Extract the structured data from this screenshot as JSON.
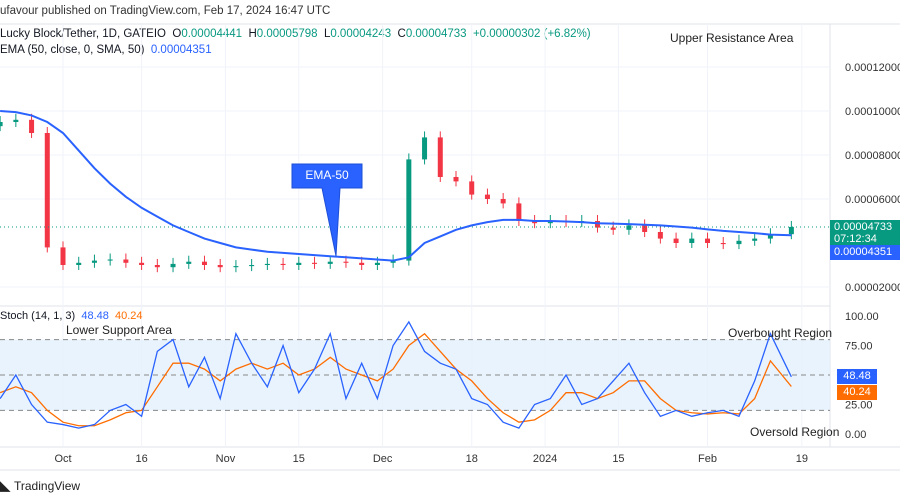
{
  "header": {
    "published": "ufavour published on TradingView.com, Feb 17, 2024 16:47 UTC",
    "symbol": "Lucky Block/Tether, 1D, GATEIO",
    "o_label": "O",
    "o": "0.00004441",
    "h_label": "H",
    "h": "0.00005798",
    "l_label": "L",
    "l": "0.00004243",
    "c_label": "C",
    "c": "0.00004733",
    "change": "+0.00000302 (+6.82%)",
    "ema_label": "EMA (50, close, 0, SMA, 50)",
    "ema_value": "0.00004351"
  },
  "annotations": {
    "upper": "Upper Resistance Area",
    "ema_callout": "EMA-50",
    "lower": "Lower Support Area",
    "overbought": "Overbought Region",
    "oversold": "Oversold Region"
  },
  "price_axis": {
    "ticks": [
      "0.00012000",
      "0.00010000",
      "0.00008000",
      "0.00006000",
      "0.00002000"
    ],
    "last_price": "0.00004733",
    "countdown": "07:12:34",
    "ema_price": "0.00004351"
  },
  "stoch": {
    "label": "Stoch (14, 1, 3)",
    "k_value": "48.48",
    "d_value": "40.24",
    "ticks": [
      "100.00",
      "75.00",
      "25.00",
      "0.00"
    ]
  },
  "time_axis": [
    "Oct",
    "16",
    "Nov",
    "15",
    "Dec",
    "18",
    "2024",
    "15",
    "Feb",
    "19"
  ],
  "footer": {
    "brand": "TradingView"
  },
  "colors": {
    "up": "#089981",
    "down": "#f23645",
    "ema": "#2962ff",
    "k": "#2962ff",
    "d": "#ff6d00",
    "band": "#e3f0fd"
  },
  "chart_data": {
    "type": "candlestick",
    "dates": [
      "2023-09-19",
      "2023-09-22",
      "2023-09-25",
      "2023-09-28",
      "2023-10-01",
      "2023-10-04",
      "2023-10-07",
      "2023-10-10",
      "2023-10-13",
      "2023-10-16",
      "2023-10-19",
      "2023-10-22",
      "2023-10-25",
      "2023-10-28",
      "2023-10-31",
      "2023-11-03",
      "2023-11-06",
      "2023-11-09",
      "2023-11-12",
      "2023-11-15",
      "2023-11-18",
      "2023-11-21",
      "2023-11-24",
      "2023-11-27",
      "2023-11-30",
      "2023-12-03",
      "2023-12-06",
      "2023-12-09",
      "2023-12-12",
      "2023-12-15",
      "2023-12-18",
      "2023-12-21",
      "2023-12-24",
      "2023-12-27",
      "2023-12-30",
      "2024-01-02",
      "2024-01-05",
      "2024-01-08",
      "2024-01-11",
      "2024-01-14",
      "2024-01-17",
      "2024-01-20",
      "2024-01-23",
      "2024-01-26",
      "2024-01-29",
      "2024-02-01",
      "2024-02-04",
      "2024-02-07",
      "2024-02-10",
      "2024-02-13",
      "2024-02-17"
    ],
    "close": [
      9.5e-05,
      9.6e-05,
      9e-05,
      3.8e-05,
      3e-05,
      3.1e-05,
      3.2e-05,
      3.25e-05,
      3.1e-05,
      3e-05,
      2.9e-05,
      3.05e-05,
      3.15e-05,
      3e-05,
      2.9e-05,
      2.95e-05,
      3e-05,
      3.05e-05,
      3e-05,
      3.1e-05,
      3.05e-05,
      3.15e-05,
      3.1e-05,
      3e-05,
      3.1e-05,
      3.2e-05,
      7.8e-05,
      8.8e-05,
      7e-05,
      6.8e-05,
      6.2e-05,
      6e-05,
      5.8e-05,
      5e-05,
      4.9e-05,
      5e-05,
      4.95e-05,
      5e-05,
      4.7e-05,
      4.6e-05,
      4.8e-05,
      4.5e-05,
      4.2e-05,
      4e-05,
      4.2e-05,
      4e-05,
      3.95e-05,
      4.1e-05,
      4.2e-05,
      4.4e-05,
      4.73e-05
    ],
    "ema50": [
      0.0001,
      9.95e-05,
      9.8e-05,
      9.5e-05,
      9e-05,
      8.2e-05,
      7.4e-05,
      6.7e-05,
      6.1e-05,
      5.6e-05,
      5.2e-05,
      4.8e-05,
      4.5e-05,
      4.2e-05,
      4e-05,
      3.8e-05,
      3.7e-05,
      3.6e-05,
      3.55e-05,
      3.5e-05,
      3.45e-05,
      3.4e-05,
      3.35e-05,
      3.3e-05,
      3.25e-05,
      3.2e-05,
      3.35e-05,
      4e-05,
      4.3e-05,
      4.6e-05,
      4.8e-05,
      4.95e-05,
      5.05e-05,
      5.05e-05,
      5e-05,
      5e-05,
      4.98e-05,
      4.95e-05,
      4.9e-05,
      4.88e-05,
      4.86e-05,
      4.83e-05,
      4.8e-05,
      4.75e-05,
      4.7e-05,
      4.62e-05,
      4.55e-05,
      4.5e-05,
      4.45e-05,
      4.38e-05,
      4.35e-05
    ],
    "stoch_k": [
      30,
      50,
      25,
      10,
      8,
      5,
      8,
      20,
      25,
      15,
      70,
      80,
      40,
      65,
      30,
      85,
      60,
      40,
      75,
      35,
      55,
      85,
      30,
      60,
      30,
      75,
      95,
      70,
      60,
      55,
      30,
      25,
      10,
      5,
      25,
      30,
      50,
      25,
      30,
      45,
      60,
      35,
      15,
      20,
      15,
      18,
      20,
      15,
      45,
      85,
      48.48
    ],
    "stoch_d": [
      35,
      40,
      35,
      20,
      10,
      7,
      7,
      12,
      18,
      20,
      40,
      60,
      60,
      55,
      45,
      55,
      60,
      55,
      60,
      50,
      55,
      65,
      55,
      50,
      45,
      55,
      75,
      85,
      70,
      55,
      45,
      30,
      18,
      10,
      12,
      20,
      35,
      35,
      30,
      35,
      45,
      45,
      30,
      20,
      18,
      17,
      18,
      17,
      30,
      62,
      40.24
    ],
    "price_ylim": [
      1.5e-05,
      0.000128
    ],
    "stoch_ylim": [
      0,
      100
    ],
    "stoch_levels": [
      80,
      50,
      20
    ]
  }
}
